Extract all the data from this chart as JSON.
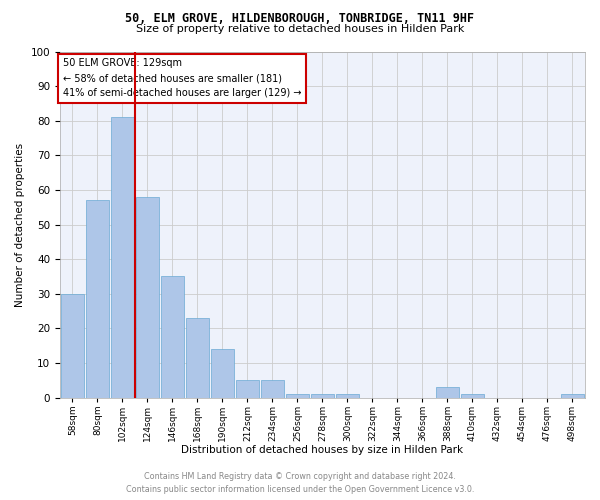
{
  "title1": "50, ELM GROVE, HILDENBOROUGH, TONBRIDGE, TN11 9HF",
  "title2": "Size of property relative to detached houses in Hilden Park",
  "xlabel": "Distribution of detached houses by size in Hilden Park",
  "ylabel": "Number of detached properties",
  "footer1": "Contains HM Land Registry data © Crown copyright and database right 2024.",
  "footer2": "Contains public sector information licensed under the Open Government Licence v3.0.",
  "categories": [
    "58sqm",
    "80sqm",
    "102sqm",
    "124sqm",
    "146sqm",
    "168sqm",
    "190sqm",
    "212sqm",
    "234sqm",
    "256sqm",
    "278sqm",
    "300sqm",
    "322sqm",
    "344sqm",
    "366sqm",
    "388sqm",
    "410sqm",
    "432sqm",
    "454sqm",
    "476sqm",
    "498sqm"
  ],
  "values": [
    30,
    57,
    81,
    58,
    35,
    23,
    14,
    5,
    5,
    1,
    1,
    1,
    0,
    0,
    0,
    3,
    1,
    0,
    0,
    0,
    1
  ],
  "bar_color": "#aec6e8",
  "bar_edge_color": "#6aaad4",
  "vline_color": "#cc0000",
  "vline_x_index": 2.5,
  "annotation_title": "50 ELM GROVE: 129sqm",
  "annotation_line2": "← 58% of detached houses are smaller (181)",
  "annotation_line3": "41% of semi-detached houses are larger (129) →",
  "annotation_box_color": "#ffffff",
  "annotation_box_edge": "#cc0000",
  "ylim": [
    0,
    100
  ],
  "background_color": "#eef2fb"
}
